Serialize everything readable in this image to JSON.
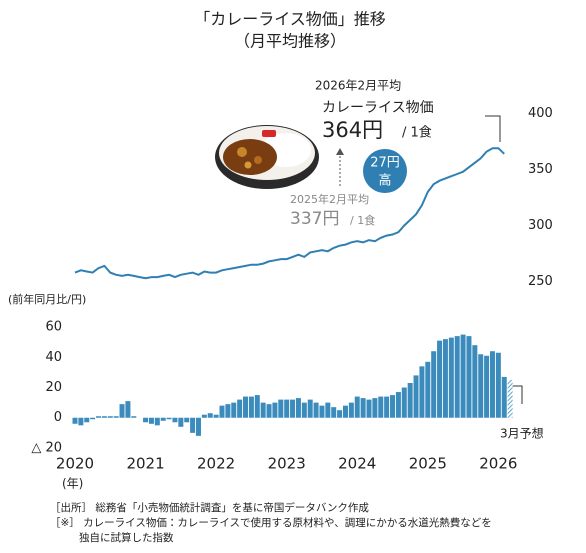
{
  "title": "「カレーライス物価」推移",
  "subtitle": "（月平均推移）",
  "chart_data": [
    {
      "type": "line",
      "categories": [
        "2020",
        null,
        null,
        null,
        null,
        null,
        null,
        null,
        null,
        null,
        null,
        null,
        "2021",
        null,
        null,
        null,
        null,
        null,
        null,
        null,
        null,
        null,
        null,
        null,
        "2022",
        null,
        null,
        null,
        null,
        null,
        null,
        null,
        null,
        null,
        null,
        null,
        "2023",
        null,
        null,
        null,
        null,
        null,
        null,
        null,
        null,
        null,
        null,
        null,
        "2024",
        null,
        null,
        null,
        null,
        null,
        null,
        null,
        null,
        null,
        null,
        null,
        "2025",
        null,
        null,
        null,
        null,
        null,
        null,
        null,
        null,
        null,
        null,
        null,
        "2026",
        null,
        null
      ],
      "values": [
        258,
        260,
        259,
        258,
        262,
        264,
        258,
        256,
        255,
        256,
        255,
        254,
        253,
        254,
        254,
        255,
        256,
        254,
        256,
        257,
        258,
        256,
        259,
        258,
        258,
        260,
        261,
        262,
        263,
        264,
        265,
        265,
        266,
        268,
        269,
        270,
        270,
        272,
        274,
        272,
        276,
        277,
        278,
        277,
        280,
        282,
        283,
        285,
        286,
        285,
        287,
        286,
        289,
        291,
        292,
        294,
        300,
        305,
        310,
        318,
        330,
        337,
        340,
        342,
        344,
        346,
        348,
        352,
        356,
        360,
        366,
        369,
        369,
        364,
        null
      ],
      "color": "#2f7fb2",
      "ylim": [
        238,
        412
      ],
      "yticks": [
        250,
        300,
        350,
        400
      ],
      "annotations": {
        "latest_period": "2026年2月平均",
        "latest_name": "カレーライス物価",
        "latest_value": "364円",
        "latest_unit": "/ 1食",
        "prior_period": "2025年2月平均",
        "prior_value": "337円",
        "prior_unit": "/ 1食",
        "badge_top": "27円",
        "badge_bottom": "高"
      }
    },
    {
      "type": "bar",
      "y_label": "(前年同月比/円)",
      "x_label": "(年)",
      "categories": [
        "2020",
        null,
        null,
        null,
        null,
        null,
        null,
        null,
        null,
        null,
        null,
        null,
        "2021",
        null,
        null,
        null,
        null,
        null,
        null,
        null,
        null,
        null,
        null,
        null,
        "2022",
        null,
        null,
        null,
        null,
        null,
        null,
        null,
        null,
        null,
        null,
        null,
        "2023",
        null,
        null,
        null,
        null,
        null,
        null,
        null,
        null,
        null,
        null,
        null,
        "2024",
        null,
        null,
        null,
        null,
        null,
        null,
        null,
        null,
        null,
        null,
        null,
        "2025",
        null,
        null,
        null,
        null,
        null,
        null,
        null,
        null,
        null,
        null,
        null,
        "2026",
        null,
        null
      ],
      "values": [
        -4,
        -5,
        -3,
        -1,
        1,
        1,
        1,
        1,
        9,
        11,
        1,
        0,
        -3,
        -4,
        -5,
        -2,
        -1,
        -3,
        -6,
        -3,
        -10,
        -12,
        2,
        3,
        2,
        8,
        9,
        10,
        12,
        14,
        14,
        15,
        10,
        9,
        10,
        12,
        12,
        12,
        13,
        10,
        12,
        10,
        8,
        10,
        7,
        5,
        8,
        10,
        14,
        13,
        12,
        13,
        14,
        14,
        15,
        17,
        20,
        23,
        28,
        34,
        37,
        44,
        51,
        52,
        53,
        54,
        55,
        54,
        48,
        42,
        41,
        44,
        43,
        27,
        25
      ],
      "color": "#3b8cbd",
      "last_forecast": true,
      "forecast_label": "3月予想",
      "ylim": [
        -22,
        64
      ],
      "yticks": [
        60,
        40,
        20,
        0,
        {
          "value": -20,
          "label": "△ 20"
        }
      ]
    }
  ],
  "footnotes": [
    "［出所］ 総務省「小売物価統計調査」を基に帝国データバンク作成",
    "［※］ カレーライス物価：カレーライスで使用する原材料や、調理にかかる水道光熱費などを",
    "独自に試算した指数"
  ]
}
